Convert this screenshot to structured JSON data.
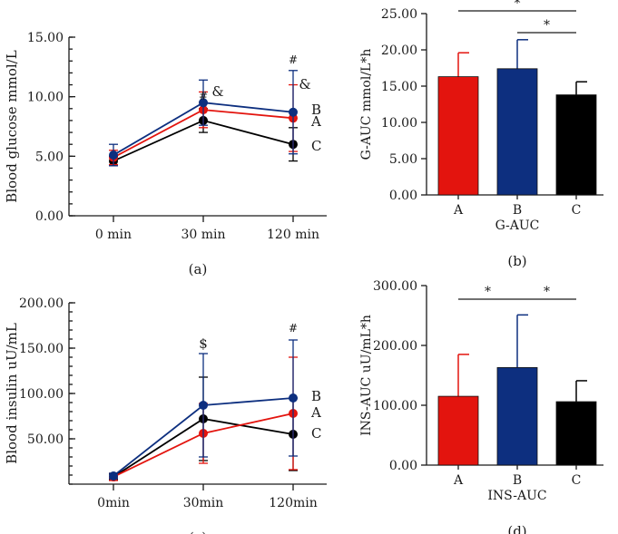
{
  "colors": {
    "A": "#e3140e",
    "B": "#0d2f7f",
    "C": "#000000"
  },
  "chart_data": [
    {
      "type": "line",
      "panel_label": "(a)",
      "ylabel": "Blood glucose mmol/L",
      "ylim": [
        0,
        15
      ],
      "yticks": [
        "0.00",
        "5.00",
        "10.00",
        "15.00"
      ],
      "categories": [
        "0 min",
        "30 min",
        "120 min"
      ],
      "series": [
        {
          "name": "A",
          "values": [
            4.9,
            8.9,
            8.2
          ],
          "err": [
            0.6,
            1.5,
            2.8
          ]
        },
        {
          "name": "B",
          "values": [
            5.1,
            9.5,
            8.7
          ],
          "err": [
            0.9,
            1.9,
            3.5
          ]
        },
        {
          "name": "C",
          "values": [
            4.6,
            8.0,
            6.0
          ],
          "err": [
            0.4,
            1.0,
            1.4
          ]
        }
      ],
      "annotations": [
        {
          "cat": 1,
          "text": "#"
        },
        {
          "cat": 1,
          "text": "&"
        },
        {
          "cat": 2,
          "text": "#"
        },
        {
          "cat": 2,
          "text": "&"
        }
      ]
    },
    {
      "type": "bar",
      "panel_label": "(b)",
      "ylabel": "G-AUC mmol/L*h",
      "xlabel": "G-AUC",
      "ylim": [
        0,
        25
      ],
      "yticks": [
        "0.00",
        "5.00",
        "10.00",
        "15.00",
        "20.00",
        "25.00"
      ],
      "categories": [
        "A",
        "B",
        "C"
      ],
      "values": [
        16.3,
        17.4,
        13.8
      ],
      "err": [
        3.3,
        4.0,
        1.8
      ],
      "significance": [
        {
          "from": 0,
          "to": 2,
          "label": "*"
        },
        {
          "from": 1,
          "to": 2,
          "label": "*"
        }
      ]
    },
    {
      "type": "line",
      "panel_label": "(c)",
      "ylabel": "Blood insulin uU/mL",
      "ylim": [
        0,
        200
      ],
      "yticks": [
        "50.00",
        "100.00",
        "150.00",
        "200.00"
      ],
      "categories": [
        "0min",
        "30min",
        "120min"
      ],
      "series": [
        {
          "name": "A",
          "values": [
            8,
            56,
            78
          ],
          "err": [
            4,
            33,
            62
          ]
        },
        {
          "name": "B",
          "values": [
            9,
            87,
            95
          ],
          "err": [
            3,
            57,
            64
          ]
        },
        {
          "name": "C",
          "values": [
            8,
            72,
            55
          ],
          "err": [
            3,
            46,
            40
          ]
        }
      ],
      "annotations": [
        {
          "cat": 1,
          "text": "$"
        },
        {
          "cat": 2,
          "text": "#"
        }
      ]
    },
    {
      "type": "bar",
      "panel_label": "(d)",
      "ylabel": "INS-AUC uU/mL*h",
      "xlabel": "INS-AUC",
      "ylim": [
        0,
        300
      ],
      "yticks": [
        "0.00",
        "100.00",
        "200.00",
        "300.00"
      ],
      "categories": [
        "A",
        "B",
        "C"
      ],
      "values": [
        115,
        163,
        106
      ],
      "err": [
        70,
        88,
        35
      ],
      "significance": [
        {
          "from": 0,
          "to": 1,
          "label": "*"
        },
        {
          "from": 1,
          "to": 2,
          "label": "*"
        }
      ]
    }
  ]
}
